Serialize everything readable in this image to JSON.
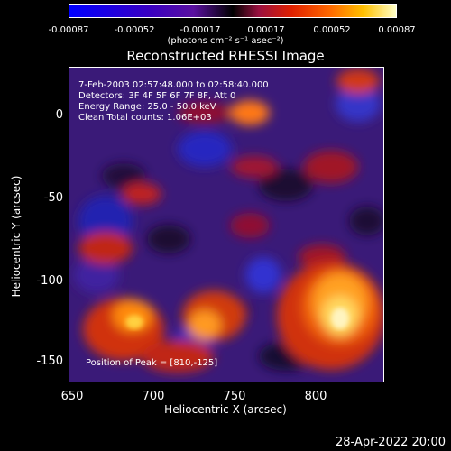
{
  "colorbar": {
    "ticks": [
      "-0.00087",
      "-0.00052",
      "-0.00017",
      "0.00017",
      "0.00052",
      "0.00087"
    ],
    "unit": "(photons cm⁻² s⁻¹ asec⁻²)"
  },
  "title": "Reconstructed RHESSI Image",
  "info": {
    "line1": "7-Feb-2003 02:57:48.000 to 02:58:40.000",
    "line2": "Detectors: 3F 4F 5F 6F 7F 8F, Att 0",
    "line3": "Energy Range: 25.0 - 50.0 keV",
    "line4": "Clean      Total counts: 1.06E+03"
  },
  "peak_text": "Position of Peak = [810,-125]",
  "axes": {
    "xlabel": "Heliocentric X (arcsec)",
    "ylabel": "Heliocentric Y (arcsec)",
    "xticks": [
      "650",
      "700",
      "750",
      "800"
    ],
    "yticks": [
      "0",
      "-50",
      "-100",
      "-150"
    ]
  },
  "timestamp": "28-Apr-2022 20:00"
}
